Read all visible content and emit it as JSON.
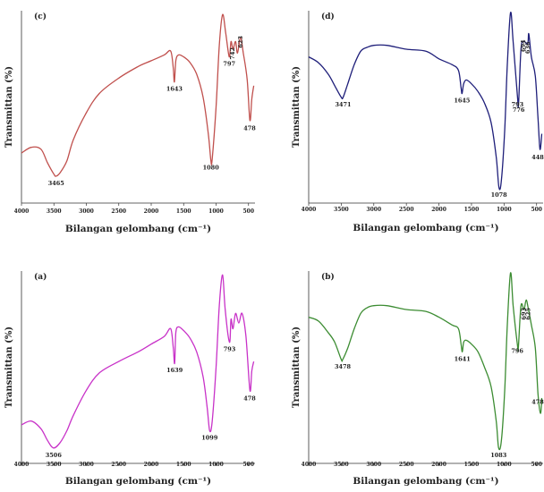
{
  "chart_data": [
    {
      "type": "line",
      "panel": "(c)",
      "color": "#c0504d",
      "xlabel": "Bilangan gelombang (cm⁻¹)",
      "ylabel": "Transmittan (%)",
      "xlim": [
        4000,
        400
      ],
      "xticks": [
        4000,
        3500,
        3000,
        2500,
        2000,
        1500,
        1000,
        500
      ],
      "ylim": [
        0,
        100
      ],
      "x": [
        4000,
        3850,
        3700,
        3600,
        3500,
        3465,
        3400,
        3300,
        3200,
        3000,
        2800,
        2500,
        2200,
        2000,
        1800,
        1700,
        1660,
        1643,
        1620,
        1580,
        1500,
        1400,
        1300,
        1200,
        1120,
        1080,
        1060,
        1000,
        950,
        900,
        850,
        797,
        770,
        740,
        700,
        670,
        623,
        580,
        520,
        478,
        450,
        420
      ],
      "y": [
        26,
        29,
        28,
        21,
        15,
        14,
        16,
        22,
        33,
        47,
        57,
        65,
        71,
        74,
        77,
        79,
        70,
        63,
        74,
        77,
        76,
        73,
        67,
        55,
        36,
        22,
        23,
        50,
        82,
        98,
        88,
        76,
        84,
        80,
        84,
        78,
        86,
        78,
        64,
        43,
        54,
        61
      ],
      "annotations": [
        {
          "label": "3465",
          "x": 3465,
          "y": 14
        },
        {
          "label": "1643",
          "x": 1643,
          "y": 63
        },
        {
          "label": "1080",
          "x": 1080,
          "y": 22
        },
        {
          "label": "797",
          "x": 797,
          "y": 76
        },
        {
          "label": "742",
          "x": 742,
          "y": 80
        },
        {
          "label": "623",
          "x": 623,
          "y": 86
        },
        {
          "label": "478",
          "x": 478,
          "y": 43
        }
      ]
    },
    {
      "type": "line",
      "panel": "(d)",
      "color": "#1f1f7a",
      "xlabel": "Bilangan gelombang (cm⁻¹)",
      "ylabel": "Transmittan (%)",
      "xlim": [
        4000,
        400
      ],
      "xticks": [
        4000,
        3500,
        3000,
        2500,
        2000,
        1500,
        1000,
        500
      ],
      "ylim": [
        0,
        100
      ],
      "x": [
        4000,
        3850,
        3700,
        3600,
        3500,
        3471,
        3400,
        3300,
        3200,
        3100,
        3000,
        2800,
        2500,
        2200,
        2000,
        1800,
        1700,
        1660,
        1645,
        1620,
        1580,
        1500,
        1400,
        1300,
        1200,
        1120,
        1078,
        1040,
        990,
        950,
        900,
        860,
        793,
        776,
        740,
        700,
        636,
        620,
        580,
        520,
        480,
        448,
        420
      ],
      "y": [
        76,
        73,
        67,
        61,
        55,
        55,
        62,
        72,
        79,
        81,
        82,
        82,
        80,
        79,
        75,
        72,
        69,
        60,
        57,
        62,
        64,
        62,
        58,
        52,
        42,
        24,
        8,
        12,
        38,
        72,
        99,
        84,
        55,
        52,
        80,
        84,
        83,
        88,
        76,
        66,
        45,
        28,
        36
      ],
      "annotations": [
        {
          "label": "3471",
          "x": 3471,
          "y": 55
        },
        {
          "label": "1645",
          "x": 1645,
          "y": 57
        },
        {
          "label": "1078",
          "x": 1078,
          "y": 8
        },
        {
          "label": "793",
          "x": 793,
          "y": 55
        },
        {
          "label": "776",
          "x": 776,
          "y": 52
        },
        {
          "label": "694",
          "x": 700,
          "y": 84
        },
        {
          "label": "636",
          "x": 636,
          "y": 83
        },
        {
          "label": "448",
          "x": 448,
          "y": 28
        }
      ]
    },
    {
      "type": "line",
      "panel": "(a)",
      "color": "#c832c8",
      "xlabel": "Bilangan gelombang (cm⁻¹)",
      "ylabel": "Transmittan (%)",
      "xlim": [
        4000,
        400
      ],
      "xticks": [
        4000,
        3500,
        3000,
        2500,
        2000,
        1500,
        1000,
        500
      ],
      "ylim": [
        0,
        100
      ],
      "x": [
        4000,
        3850,
        3700,
        3600,
        3506,
        3400,
        3300,
        3200,
        3000,
        2800,
        2500,
        2200,
        2000,
        1800,
        1700,
        1660,
        1639,
        1620,
        1580,
        1500,
        1400,
        1300,
        1200,
        1140,
        1099,
        1060,
        1000,
        950,
        900,
        860,
        793,
        770,
        740,
        700,
        650,
        600,
        540,
        478,
        450,
        420
      ],
      "y": [
        20,
        22,
        18,
        12,
        8,
        11,
        17,
        25,
        38,
        47,
        53,
        58,
        62,
        66,
        70,
        60,
        52,
        68,
        71,
        69,
        65,
        58,
        45,
        30,
        17,
        22,
        50,
        82,
        98,
        80,
        63,
        75,
        70,
        78,
        73,
        78,
        66,
        38,
        48,
        53
      ],
      "annotations": [
        {
          "label": "3506",
          "x": 3506,
          "y": 8
        },
        {
          "label": "1639",
          "x": 1639,
          "y": 52
        },
        {
          "label": "1099",
          "x": 1099,
          "y": 17
        },
        {
          "label": "793",
          "x": 793,
          "y": 63
        },
        {
          "label": "478",
          "x": 478,
          "y": 38
        }
      ]
    },
    {
      "type": "line",
      "panel": "(b)",
      "color": "#3c8c32",
      "xlabel": "Bilangan gelombang (cm⁻¹)",
      "ylabel": "Transmittan (%)",
      "xlim": [
        4000,
        400
      ],
      "xticks": [
        4000,
        3500,
        3000,
        2500,
        2000,
        1500,
        1000,
        500
      ],
      "ylim": [
        0,
        100
      ],
      "x": [
        4000,
        3850,
        3700,
        3600,
        3500,
        3478,
        3400,
        3300,
        3200,
        3100,
        3000,
        2800,
        2500,
        2200,
        2000,
        1800,
        1700,
        1660,
        1641,
        1620,
        1580,
        1500,
        1400,
        1300,
        1200,
        1120,
        1083,
        1040,
        990,
        950,
        900,
        860,
        796,
        780,
        740,
        693,
        660,
        625,
        580,
        520,
        478,
        440,
        420
      ],
      "y": [
        76,
        74,
        68,
        63,
        54,
        54,
        60,
        70,
        78,
        81,
        82,
        82,
        80,
        79,
        76,
        72,
        70,
        62,
        58,
        63,
        64,
        62,
        58,
        50,
        40,
        22,
        8,
        12,
        38,
        72,
        99,
        82,
        62,
        60,
        82,
        80,
        85,
        80,
        72,
        60,
        36,
        26,
        34
      ],
      "annotations": [
        {
          "label": "3478",
          "x": 3478,
          "y": 54
        },
        {
          "label": "1641",
          "x": 1641,
          "y": 58
        },
        {
          "label": "1083",
          "x": 1083,
          "y": 8
        },
        {
          "label": "796",
          "x": 796,
          "y": 62
        },
        {
          "label": "693",
          "x": 693,
          "y": 80
        },
        {
          "label": "625",
          "x": 625,
          "y": 80
        },
        {
          "label": "478",
          "x": 478,
          "y": 36
        }
      ]
    }
  ]
}
